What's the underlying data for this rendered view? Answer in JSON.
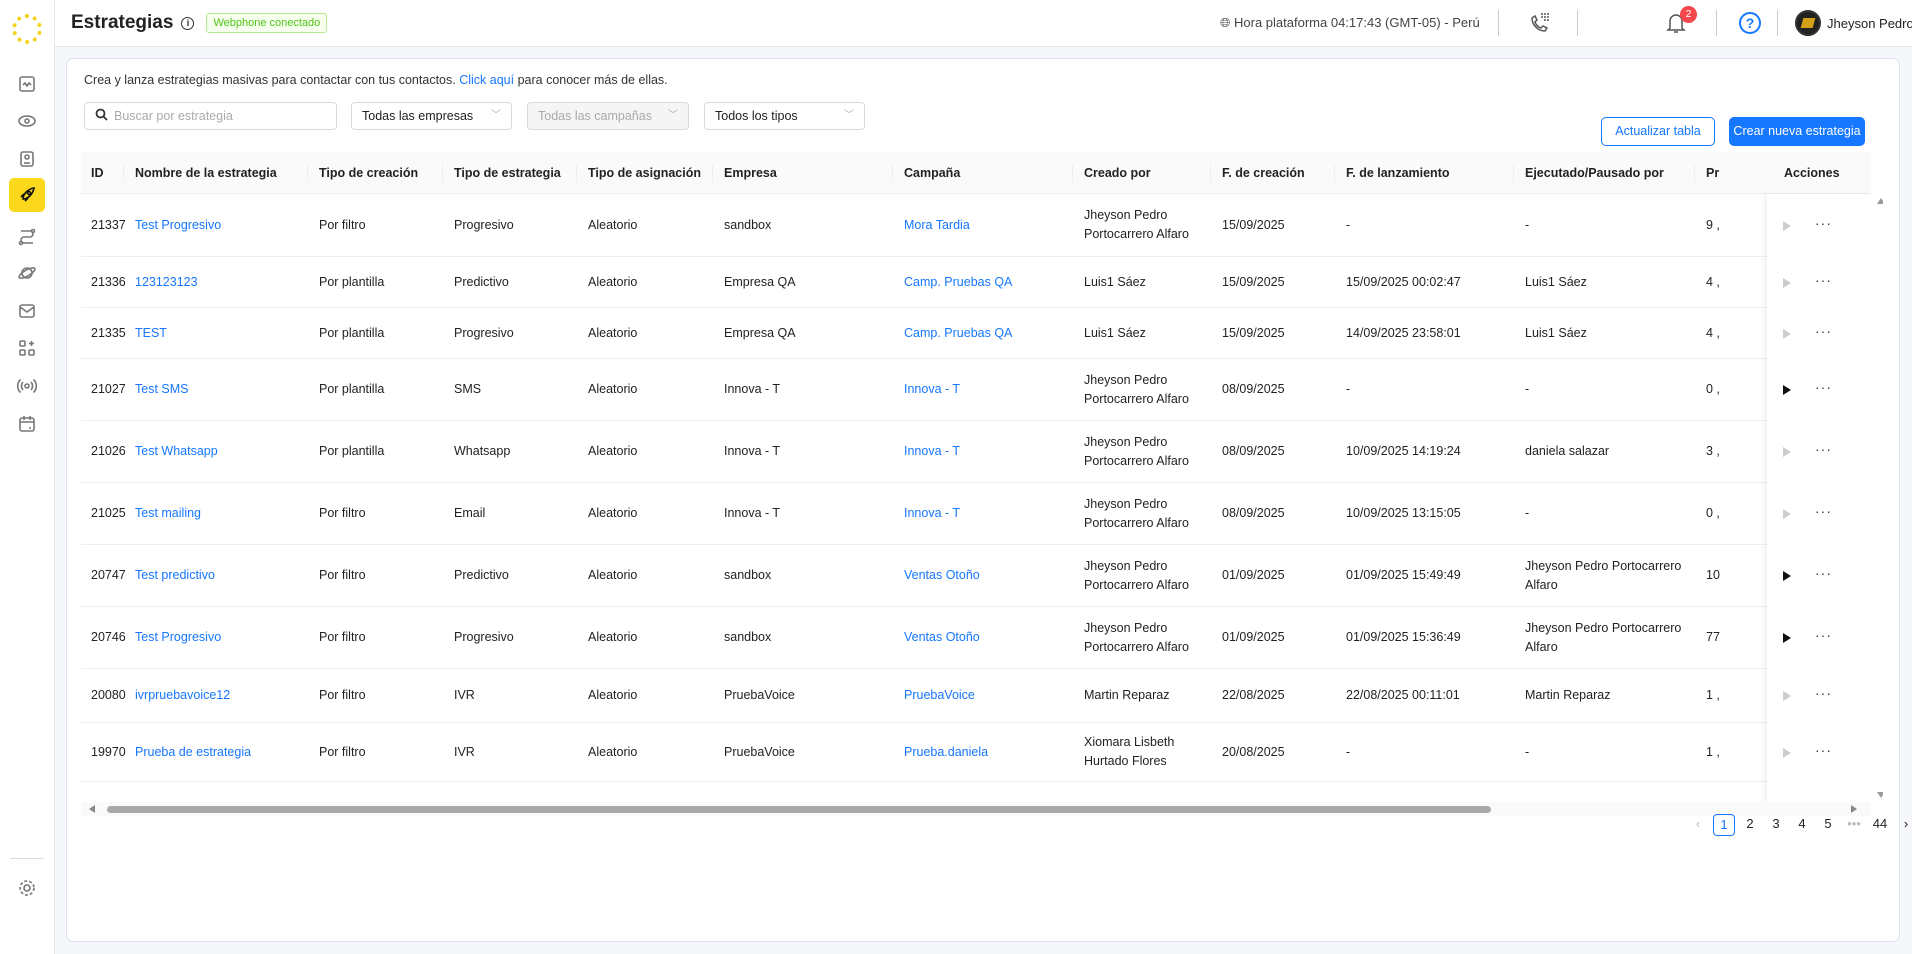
{
  "sidebar": {
    "items": [
      "activity-icon",
      "eye-icon",
      "contacts-icon",
      "rocket-icon",
      "flow-icon",
      "planet-icon",
      "mail-icon",
      "apps-icon",
      "broadcast-icon",
      "calendar-icon"
    ],
    "active": "rocket-icon",
    "settings": "gear-icon"
  },
  "header": {
    "title": "Estrategias",
    "badge": "Webphone conectado",
    "time": "Hora plataforma 04:17:43 (GMT-05) - Perú",
    "notifications": "2",
    "help": "?",
    "user": "Jheyson Pedro"
  },
  "main": {
    "intro": "Crea y lanza estrategias masivas para contactar con tus contactos.",
    "intro_link": "Click aquí",
    "intro_end": "para conocer más de ellas.",
    "search_placeholder": "Buscar por estrategia",
    "filters": [
      "Todas las empresas",
      "Todas las campañas",
      "Todos los tipos"
    ],
    "refresh_label": "Actualizar tabla",
    "create_label": "Crear nueva estrategia",
    "columns": [
      "ID",
      "Nombre de la estrategia",
      "Tipo de creación",
      "Tipo de estrategia",
      "Tipo de asignación",
      "Empresa",
      "Campaña",
      "Creado por",
      "F. de creación",
      "F. de lanzamiento",
      "Ejecutado/Pausado por",
      "Pr",
      "Acciones"
    ],
    "rows": [
      {
        "id": "21337",
        "name": "Test Progresivo",
        "creation": "Por filtro",
        "type": "Progresivo",
        "assign": "Aleatorio",
        "company": "sandbox",
        "campaign": "Mora Tardia",
        "created_by": "Jheyson Pedro\nPortocarrero Alfaro",
        "created": "15/09/2025",
        "launched": "-",
        "executed_by": "-",
        "pr": "9 ,",
        "play_enabled": false
      },
      {
        "id": "21336",
        "name": "123123123",
        "creation": "Por plantilla",
        "type": "Predictivo",
        "assign": "Aleatorio",
        "company": "Empresa QA",
        "campaign": "Camp. Pruebas QA",
        "created_by": "Luis1 Sáez",
        "created": "15/09/2025",
        "launched": "15/09/2025 00:02:47",
        "executed_by": "Luis1 Sáez",
        "pr": "4 ,",
        "play_enabled": false
      },
      {
        "id": "21335",
        "name": "TEST",
        "creation": "Por plantilla",
        "type": "Progresivo",
        "assign": "Aleatorio",
        "company": "Empresa QA",
        "campaign": "Camp. Pruebas QA",
        "created_by": "Luis1 Sáez",
        "created": "15/09/2025",
        "launched": "14/09/2025 23:58:01",
        "executed_by": "Luis1 Sáez",
        "pr": "4 ,",
        "play_enabled": false
      },
      {
        "id": "21027",
        "name": "Test SMS",
        "creation": "Por plantilla",
        "type": "SMS",
        "assign": "Aleatorio",
        "company": "Innova - T",
        "campaign": "Innova - T",
        "created_by": "Jheyson Pedro\nPortocarrero Alfaro",
        "created": "08/09/2025",
        "launched": "-",
        "executed_by": "-",
        "pr": "0 ,",
        "play_enabled": true
      },
      {
        "id": "21026",
        "name": "Test Whatsapp",
        "creation": "Por plantilla",
        "type": "Whatsapp",
        "assign": "Aleatorio",
        "company": "Innova - T",
        "campaign": "Innova - T",
        "created_by": "Jheyson Pedro\nPortocarrero Alfaro",
        "created": "08/09/2025",
        "launched": "10/09/2025 14:19:24",
        "executed_by": "daniela salazar",
        "pr": "3 ,",
        "play_enabled": false
      },
      {
        "id": "21025",
        "name": "Test mailing",
        "creation": "Por filtro",
        "type": "Email",
        "assign": "Aleatorio",
        "company": "Innova - T",
        "campaign": "Innova - T",
        "created_by": "Jheyson Pedro\nPortocarrero Alfaro",
        "created": "08/09/2025",
        "launched": "10/09/2025 13:15:05",
        "executed_by": "-",
        "pr": "0 ,",
        "play_enabled": false
      },
      {
        "id": "20747",
        "name": "Test predictivo",
        "creation": "Por filtro",
        "type": "Predictivo",
        "assign": "Aleatorio",
        "company": "sandbox",
        "campaign": "Ventas Otoño",
        "created_by": "Jheyson Pedro\nPortocarrero Alfaro",
        "created": "01/09/2025",
        "launched": "01/09/2025 15:49:49",
        "executed_by": "Jheyson Pedro Portocarrero\nAlfaro",
        "pr": "10",
        "play_enabled": true
      },
      {
        "id": "20746",
        "name": "Test Progresivo",
        "creation": "Por filtro",
        "type": "Progresivo",
        "assign": "Aleatorio",
        "company": "sandbox",
        "campaign": "Ventas Otoño",
        "created_by": "Jheyson Pedro\nPortocarrero Alfaro",
        "created": "01/09/2025",
        "launched": "01/09/2025 15:36:49",
        "executed_by": "Jheyson Pedro Portocarrero\nAlfaro",
        "pr": "77",
        "play_enabled": true
      },
      {
        "id": "20080",
        "name": "ivrpruebavoice12",
        "creation": "Por filtro",
        "type": "IVR",
        "assign": "Aleatorio",
        "company": "PruebaVoice",
        "campaign": "PruebaVoice",
        "created_by": "Martin Reparaz",
        "created": "22/08/2025",
        "launched": "22/08/2025 00:11:01",
        "executed_by": "Martin Reparaz",
        "pr": "1 ,",
        "play_enabled": false
      },
      {
        "id": "19970",
        "name": "Prueba de estrategia",
        "creation": "Por filtro",
        "type": "IVR",
        "assign": "Aleatorio",
        "company": "PruebaVoice",
        "campaign": "Prueba.daniela",
        "created_by": "Xiomara Lisbeth\nHurtado Flores",
        "created": "20/08/2025",
        "launched": "-",
        "executed_by": "-",
        "pr": "1 ,",
        "play_enabled": false
      }
    ],
    "pagination": {
      "pages": [
        "1",
        "2",
        "3",
        "4",
        "5"
      ],
      "ellipsis": "•••",
      "last": "44",
      "current": "1"
    }
  },
  "colors": {
    "accent": "#1677ff",
    "sidebar_active": "#fcd81c",
    "badge_green": "#52c41a",
    "notif_red": "#f5484d"
  }
}
